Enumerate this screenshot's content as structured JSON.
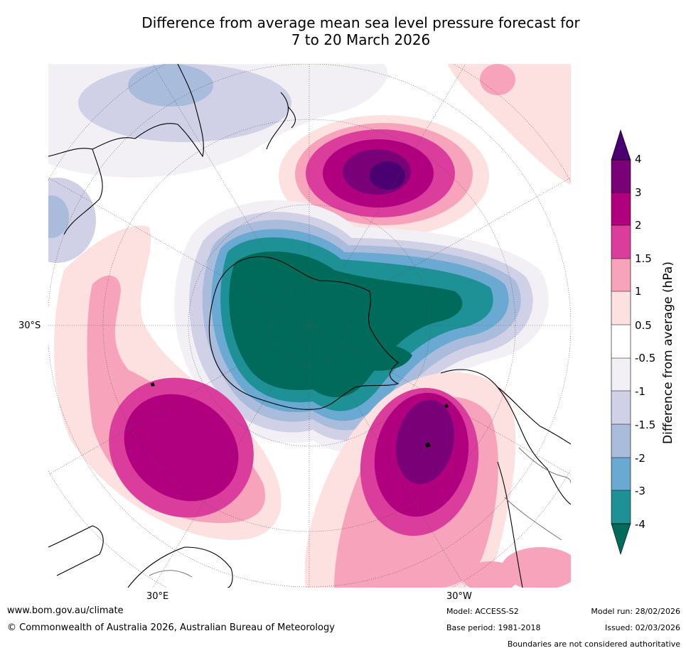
{
  "title_line1": "Difference from average mean sea level pressure forecast for",
  "title_line2": "7 to 20 March 2026",
  "colorbar": {
    "title": "Difference from average (hPa)",
    "levels": [
      "4",
      "3",
      "2",
      "1.5",
      "1",
      "0.5",
      "-0.5",
      "-1",
      "-1.5",
      "-2",
      "-3",
      "-4"
    ],
    "colors": {
      "over": "#4a0070",
      "p4": "#7a0077",
      "p3": "#b0007f",
      "p2": "#db3d9d",
      "p15": "#f7a3bb",
      "p1": "#fde0e0",
      "zero": "#ffffff",
      "m05": "#f2eff5",
      "m1": "#d0d0e6",
      "m15": "#a9bcdb",
      "m2": "#6aaad2",
      "m3": "#1e9196",
      "m4": "#006b5a"
    }
  },
  "axis_labels": {
    "lat_left": "30°S",
    "lon_30e": "30°E",
    "lon_30w": "30°W"
  },
  "footer": {
    "url": "www.bom.gov.au/climate",
    "copyright": "© Commonwealth of Australia 2026, Australian Bureau of Meteorology",
    "model": "Model: ACCESS-S2",
    "base_period": "Base period: 1981-2018",
    "model_run": "Model run: 28/02/2026",
    "issued": "Issued: 02/03/2026",
    "disclaimer": "Boundaries are not considered authoritative"
  }
}
